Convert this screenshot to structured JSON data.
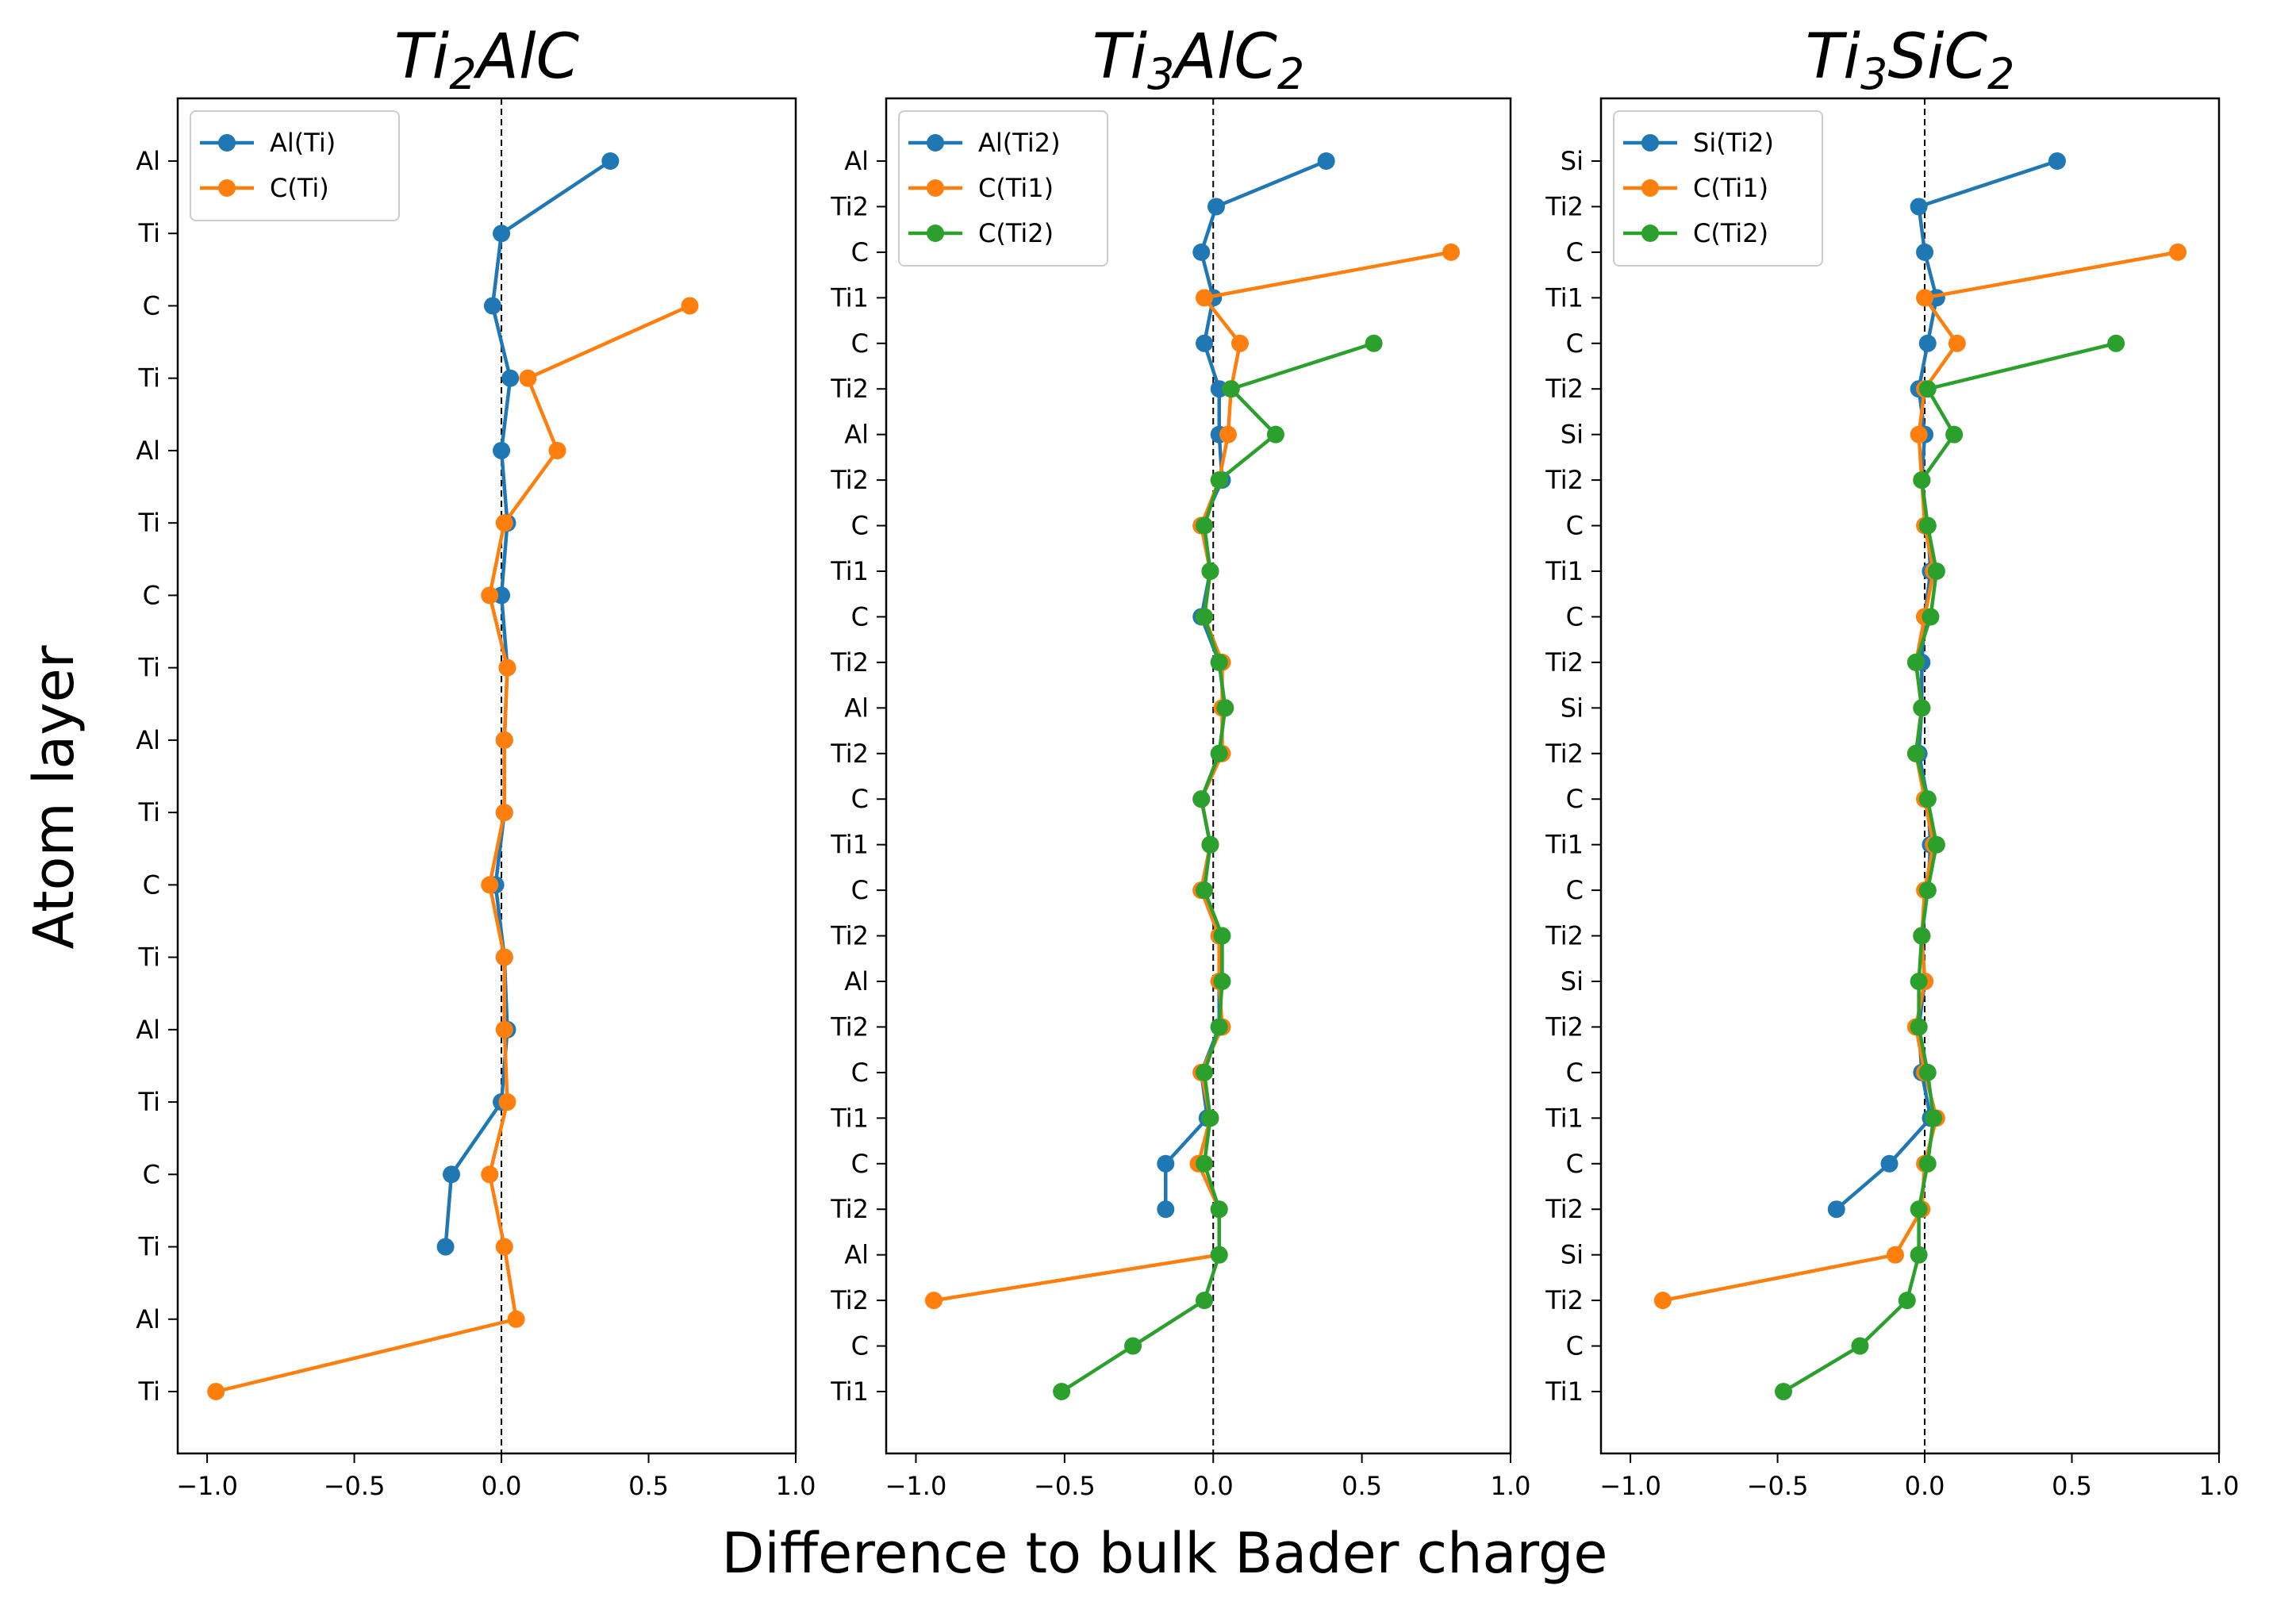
{
  "figure": {
    "ylabel": "Atom layer",
    "xlabel": "Difference to bulk Bader charge"
  },
  "chart_data": [
    {
      "type": "line",
      "title_base": "Ti",
      "title_sub1": "2",
      "title_mid": "AlC",
      "title_sub2": "",
      "xlim": [
        -1.1,
        1.0
      ],
      "xticks": [
        -1.0,
        -0.5,
        0.0,
        0.5,
        1.0
      ],
      "xtick_labels": [
        "−1.0",
        "−0.5",
        "0.0",
        "0.5",
        "1.0"
      ],
      "vline_x": 0.0,
      "legend_position": "upper left",
      "y_labels": [
        "Al",
        "Ti",
        "C",
        "Ti",
        "Al",
        "Ti",
        "C",
        "Ti",
        "Al",
        "Ti",
        "C",
        "Ti",
        "Al",
        "Ti",
        "C",
        "Ti",
        "Al",
        "Ti"
      ],
      "series": [
        {
          "name": "Al(Ti)",
          "color": "#1f77b4",
          "points": [
            [
              0.37,
              0
            ],
            [
              0.0,
              1
            ],
            [
              -0.03,
              2
            ],
            [
              0.03,
              3
            ],
            [
              0.0,
              4
            ],
            [
              0.02,
              5
            ],
            [
              0.0,
              6
            ],
            [
              0.02,
              7
            ],
            [
              0.01,
              8
            ],
            [
              0.01,
              9
            ],
            [
              -0.02,
              10
            ],
            [
              0.01,
              11
            ],
            [
              0.02,
              12
            ],
            [
              0.0,
              13
            ],
            [
              -0.17,
              14
            ],
            [
              -0.19,
              15
            ]
          ]
        },
        {
          "name": "C(Ti)",
          "color": "#ff7f0e",
          "points": [
            [
              0.64,
              2
            ],
            [
              0.09,
              3
            ],
            [
              0.19,
              4
            ],
            [
              0.01,
              5
            ],
            [
              -0.04,
              6
            ],
            [
              0.02,
              7
            ],
            [
              0.01,
              8
            ],
            [
              0.01,
              9
            ],
            [
              -0.04,
              10
            ],
            [
              0.01,
              11
            ],
            [
              0.01,
              12
            ],
            [
              0.02,
              13
            ],
            [
              -0.04,
              14
            ],
            [
              0.01,
              15
            ],
            [
              0.05,
              16
            ],
            [
              -0.97,
              17
            ]
          ]
        }
      ]
    },
    {
      "type": "line",
      "title_base": "Ti",
      "title_sub1": "3",
      "title_mid": "AlC",
      "title_sub2": "2",
      "xlim": [
        -1.1,
        1.0
      ],
      "xticks": [
        -1.0,
        -0.5,
        0.0,
        0.5,
        1.0
      ],
      "xtick_labels": [
        "−1.0",
        "−0.5",
        "0.0",
        "0.5",
        "1.0"
      ],
      "vline_x": 0.0,
      "legend_position": "upper left",
      "y_labels": [
        "Al",
        "Ti2",
        "C",
        "Ti1",
        "C",
        "Ti2",
        "Al",
        "Ti2",
        "C",
        "Ti1",
        "C",
        "Ti2",
        "Al",
        "Ti2",
        "C",
        "Ti1",
        "C",
        "Ti2",
        "Al",
        "Ti2",
        "C",
        "Ti1",
        "C",
        "Ti2",
        "Al",
        "Ti2",
        "C",
        "Ti1"
      ],
      "series": [
        {
          "name": "Al(Ti2)",
          "color": "#1f77b4",
          "points": [
            [
              0.38,
              0
            ],
            [
              0.01,
              1
            ],
            [
              -0.04,
              2
            ],
            [
              0.0,
              3
            ],
            [
              -0.03,
              4
            ],
            [
              0.02,
              5
            ],
            [
              0.02,
              6
            ],
            [
              0.03,
              7
            ],
            [
              -0.04,
              8
            ],
            [
              -0.01,
              9
            ],
            [
              -0.04,
              10
            ],
            [
              0.02,
              11
            ],
            [
              0.04,
              12
            ],
            [
              0.02,
              13
            ],
            [
              -0.04,
              14
            ],
            [
              -0.01,
              15
            ],
            [
              -0.04,
              16
            ],
            [
              0.02,
              17
            ],
            [
              0.02,
              18
            ],
            [
              0.02,
              19
            ],
            [
              -0.04,
              20
            ],
            [
              -0.02,
              21
            ],
            [
              -0.16,
              22
            ],
            [
              -0.16,
              23
            ]
          ]
        },
        {
          "name": "C(Ti1)",
          "color": "#ff7f0e",
          "points": [
            [
              0.8,
              2
            ],
            [
              -0.03,
              3
            ],
            [
              0.09,
              4
            ],
            [
              0.06,
              5
            ],
            [
              0.05,
              6
            ],
            [
              0.02,
              7
            ],
            [
              -0.04,
              8
            ],
            [
              -0.01,
              9
            ],
            [
              -0.03,
              10
            ],
            [
              0.03,
              11
            ],
            [
              0.03,
              12
            ],
            [
              0.03,
              13
            ],
            [
              -0.04,
              14
            ],
            [
              -0.01,
              15
            ],
            [
              -0.04,
              16
            ],
            [
              0.02,
              17
            ],
            [
              0.02,
              18
            ],
            [
              0.03,
              19
            ],
            [
              -0.04,
              20
            ],
            [
              -0.01,
              21
            ],
            [
              -0.05,
              22
            ],
            [
              0.02,
              23
            ],
            [
              0.02,
              24
            ],
            [
              -0.94,
              25
            ]
          ]
        },
        {
          "name": "C(Ti2)",
          "color": "#2ca02c",
          "points": [
            [
              0.54,
              4
            ],
            [
              0.06,
              5
            ],
            [
              0.21,
              6
            ],
            [
              0.02,
              7
            ],
            [
              -0.03,
              8
            ],
            [
              -0.01,
              9
            ],
            [
              -0.03,
              10
            ],
            [
              0.02,
              11
            ],
            [
              0.04,
              12
            ],
            [
              0.02,
              13
            ],
            [
              -0.04,
              14
            ],
            [
              -0.01,
              15
            ],
            [
              -0.03,
              16
            ],
            [
              0.03,
              17
            ],
            [
              0.03,
              18
            ],
            [
              0.02,
              19
            ],
            [
              -0.03,
              20
            ],
            [
              -0.01,
              21
            ],
            [
              -0.03,
              22
            ],
            [
              0.02,
              23
            ],
            [
              0.02,
              24
            ],
            [
              -0.03,
              25
            ],
            [
              -0.27,
              26
            ],
            [
              -0.51,
              27
            ]
          ]
        }
      ]
    },
    {
      "type": "line",
      "title_base": "Ti",
      "title_sub1": "3",
      "title_mid": "SiC",
      "title_sub2": "2",
      "xlim": [
        -1.1,
        1.0
      ],
      "xticks": [
        -1.0,
        -0.5,
        0.0,
        0.5,
        1.0
      ],
      "xtick_labels": [
        "−1.0",
        "−0.5",
        "0.0",
        "0.5",
        "1.0"
      ],
      "vline_x": 0.0,
      "legend_position": "upper left",
      "y_labels": [
        "Si",
        "Ti2",
        "C",
        "Ti1",
        "C",
        "Ti2",
        "Si",
        "Ti2",
        "C",
        "Ti1",
        "C",
        "Ti2",
        "Si",
        "Ti2",
        "C",
        "Ti1",
        "C",
        "Ti2",
        "Si",
        "Ti2",
        "C",
        "Ti1",
        "C",
        "Ti2",
        "Si",
        "Ti2",
        "C",
        "Ti1"
      ],
      "series": [
        {
          "name": "Si(Ti2)",
          "color": "#1f77b4",
          "points": [
            [
              0.45,
              0
            ],
            [
              -0.02,
              1
            ],
            [
              0.0,
              2
            ],
            [
              0.04,
              3
            ],
            [
              0.01,
              4
            ],
            [
              -0.02,
              5
            ],
            [
              0.0,
              6
            ],
            [
              -0.01,
              7
            ],
            [
              0.01,
              8
            ],
            [
              0.02,
              9
            ],
            [
              0.0,
              10
            ],
            [
              -0.01,
              11
            ],
            [
              -0.01,
              12
            ],
            [
              -0.02,
              13
            ],
            [
              0.01,
              14
            ],
            [
              0.02,
              15
            ],
            [
              0.01,
              16
            ],
            [
              -0.01,
              17
            ],
            [
              0.0,
              18
            ],
            [
              -0.02,
              19
            ],
            [
              -0.01,
              20
            ],
            [
              0.02,
              21
            ],
            [
              -0.12,
              22
            ],
            [
              -0.3,
              23
            ]
          ]
        },
        {
          "name": "C(Ti1)",
          "color": "#ff7f0e",
          "points": [
            [
              0.86,
              2
            ],
            [
              0.0,
              3
            ],
            [
              0.11,
              4
            ],
            [
              0.0,
              5
            ],
            [
              -0.02,
              6
            ],
            [
              -0.01,
              7
            ],
            [
              0.0,
              8
            ],
            [
              0.03,
              9
            ],
            [
              0.0,
              10
            ],
            [
              -0.03,
              11
            ],
            [
              -0.01,
              12
            ],
            [
              -0.03,
              13
            ],
            [
              0.0,
              14
            ],
            [
              0.03,
              15
            ],
            [
              0.0,
              16
            ],
            [
              -0.01,
              17
            ],
            [
              0.0,
              18
            ],
            [
              -0.03,
              19
            ],
            [
              0.0,
              20
            ],
            [
              0.04,
              21
            ],
            [
              0.0,
              22
            ],
            [
              -0.01,
              23
            ],
            [
              -0.1,
              24
            ],
            [
              -0.89,
              25
            ]
          ]
        },
        {
          "name": "C(Ti2)",
          "color": "#2ca02c",
          "points": [
            [
              0.65,
              4
            ],
            [
              0.01,
              5
            ],
            [
              0.1,
              6
            ],
            [
              -0.01,
              7
            ],
            [
              0.01,
              8
            ],
            [
              0.04,
              9
            ],
            [
              0.02,
              10
            ],
            [
              -0.03,
              11
            ],
            [
              -0.01,
              12
            ],
            [
              -0.03,
              13
            ],
            [
              0.01,
              14
            ],
            [
              0.04,
              15
            ],
            [
              0.01,
              16
            ],
            [
              -0.01,
              17
            ],
            [
              -0.02,
              18
            ],
            [
              -0.02,
              19
            ],
            [
              0.01,
              20
            ],
            [
              0.03,
              21
            ],
            [
              0.01,
              22
            ],
            [
              -0.02,
              23
            ],
            [
              -0.02,
              24
            ],
            [
              -0.06,
              25
            ],
            [
              -0.22,
              26
            ],
            [
              -0.48,
              27
            ]
          ]
        }
      ]
    }
  ]
}
